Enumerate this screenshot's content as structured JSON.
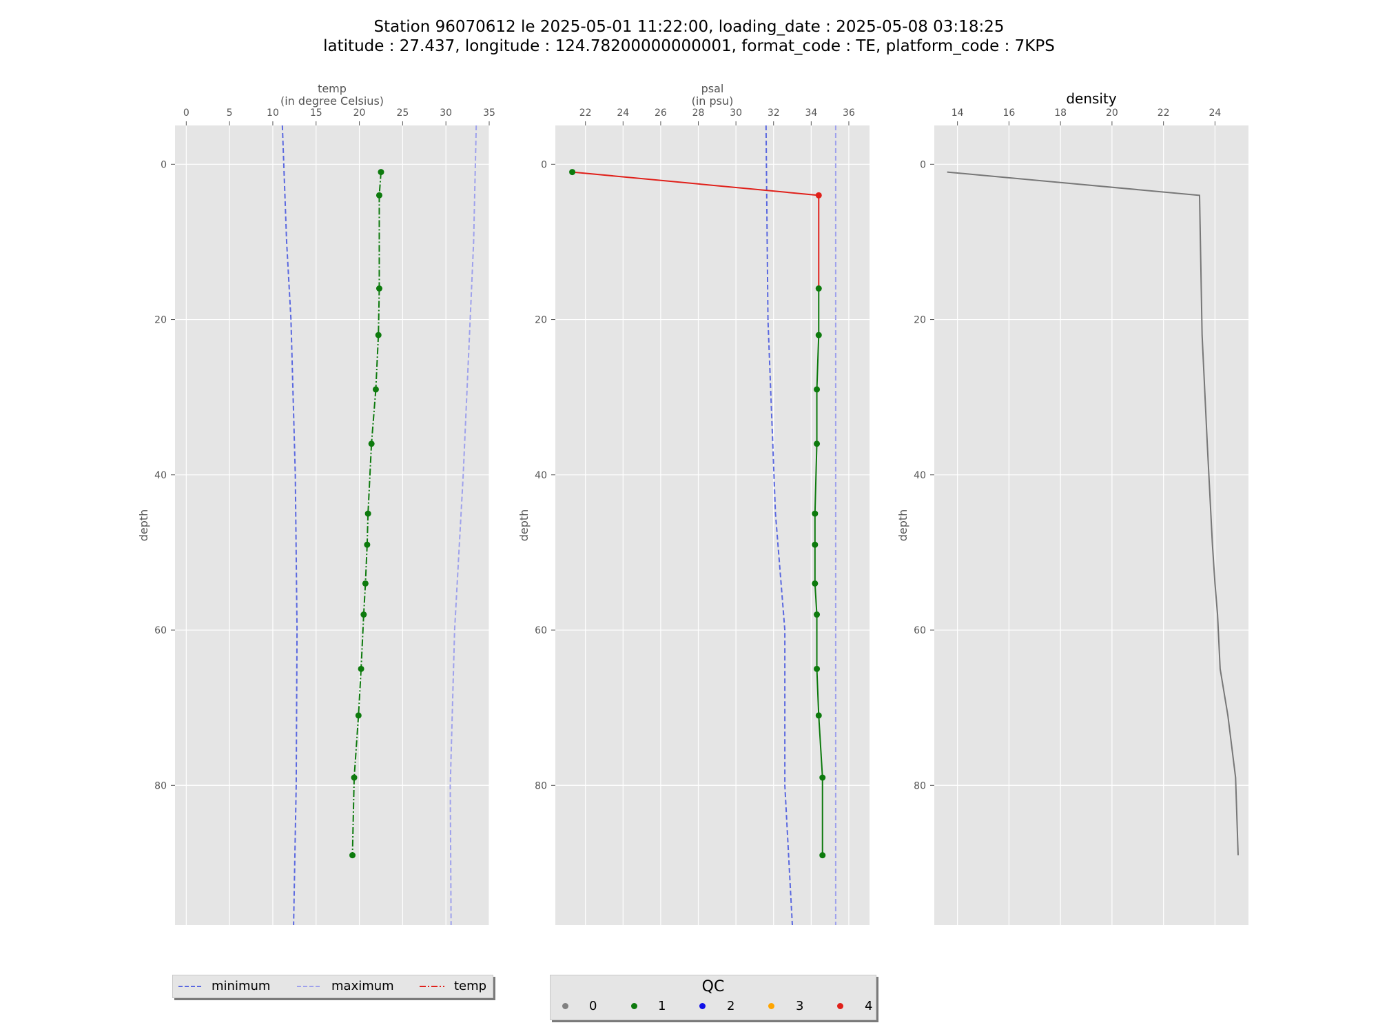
{
  "title": {
    "line1": "Station 96070612 le 2025-05-01 11:22:00, loading_date : 2025-05-08 03:18:25",
    "line2": "latitude : 27.437, longitude : 124.78200000000001, format_code : TE, platform_code : 7KPS"
  },
  "colors": {
    "background": "#e5e5e5",
    "grid": "#ffffff",
    "minimum": "#5a68e0",
    "maximum": "#9ea1ec",
    "good": "#0d7a0d",
    "bad": "#e0201a",
    "density": "#777777"
  },
  "legend": {
    "items": [
      {
        "label": "minimum",
        "style": "dashed",
        "color": "#5a68e0"
      },
      {
        "label": "maximum",
        "style": "dashed",
        "color": "#9ea1ec"
      },
      {
        "label": "temp",
        "style": "dashdot",
        "color": "#e0201a"
      }
    ]
  },
  "qc_legend": {
    "title": "QC",
    "items": [
      {
        "label": "0",
        "color": "#808080"
      },
      {
        "label": "1",
        "color": "#0d7a0d"
      },
      {
        "label": "2",
        "color": "#1010e8"
      },
      {
        "label": "3",
        "color": "#ffa500"
      },
      {
        "label": "4",
        "color": "#e0201a"
      }
    ]
  },
  "chart_data": [
    {
      "type": "line",
      "title": "temp\n(in degree Celsius)",
      "ylabel": "depth",
      "xlim": [
        -1.3,
        35
      ],
      "ylim": [
        -5,
        98
      ],
      "y_inverted": true,
      "xticks": [
        0,
        5,
        10,
        15,
        20,
        25,
        30,
        35
      ],
      "yticks": [
        0,
        20,
        40,
        60,
        80
      ],
      "grid": true,
      "series": [
        {
          "name": "minimum",
          "style": "dashed",
          "points": [
            [
              11.1,
              -5
            ],
            [
              11.6,
              10
            ],
            [
              12.1,
              20
            ],
            [
              12.6,
              40
            ],
            [
              12.8,
              60
            ],
            [
              12.7,
              80
            ],
            [
              12.4,
              98
            ]
          ]
        },
        {
          "name": "maximum",
          "style": "dashed",
          "points": [
            [
              33.5,
              -5
            ],
            [
              33.2,
              10
            ],
            [
              32.8,
              20
            ],
            [
              32.0,
              40
            ],
            [
              31.0,
              60
            ],
            [
              30.5,
              80
            ],
            [
              30.6,
              98
            ]
          ]
        },
        {
          "name": "temp",
          "style": "dashdot",
          "points": [
            [
              22.5,
              1
            ],
            [
              22.3,
              4
            ],
            [
              22.3,
              16
            ],
            [
              22.2,
              22
            ],
            [
              21.9,
              29
            ],
            [
              21.4,
              36
            ],
            [
              21.0,
              45
            ],
            [
              20.9,
              49
            ],
            [
              20.7,
              54
            ],
            [
              20.5,
              58
            ],
            [
              20.2,
              65
            ],
            [
              19.9,
              71
            ],
            [
              19.4,
              79
            ],
            [
              19.2,
              89
            ]
          ],
          "qc": [
            1,
            1,
            1,
            1,
            1,
            1,
            1,
            1,
            1,
            1,
            1,
            1,
            1,
            1
          ]
        }
      ]
    },
    {
      "type": "line",
      "title": "psal\n(in psu)",
      "ylabel": "depth",
      "xlim": [
        20.4,
        37.1
      ],
      "ylim": [
        -5,
        98
      ],
      "y_inverted": true,
      "xticks": [
        22,
        24,
        26,
        28,
        30,
        32,
        34,
        36
      ],
      "yticks": [
        0,
        20,
        40,
        60,
        80
      ],
      "grid": true,
      "series": [
        {
          "name": "minimum",
          "style": "dashed",
          "points": [
            [
              31.6,
              -5
            ],
            [
              31.7,
              20
            ],
            [
              32.1,
              45
            ],
            [
              32.6,
              60
            ],
            [
              32.6,
              80
            ],
            [
              33.0,
              98
            ]
          ]
        },
        {
          "name": "maximum",
          "style": "dashed",
          "points": [
            [
              35.3,
              -5
            ],
            [
              35.3,
              98
            ]
          ]
        },
        {
          "name": "psal",
          "style": "solid",
          "points": [
            [
              21.3,
              1
            ],
            [
              34.4,
              4
            ],
            [
              34.4,
              16
            ],
            [
              34.4,
              22
            ],
            [
              34.3,
              29
            ],
            [
              34.3,
              36
            ],
            [
              34.2,
              45
            ],
            [
              34.2,
              49
            ],
            [
              34.2,
              54
            ],
            [
              34.3,
              58
            ],
            [
              34.3,
              65
            ],
            [
              34.4,
              71
            ],
            [
              34.6,
              79
            ],
            [
              34.6,
              89
            ]
          ],
          "qc": [
            1,
            4,
            1,
            1,
            1,
            1,
            1,
            1,
            1,
            1,
            1,
            1,
            1,
            1
          ]
        }
      ]
    },
    {
      "type": "line",
      "title": "density",
      "ylabel": "depth",
      "xlim": [
        13.1,
        25.3
      ],
      "ylim": [
        -5,
        98
      ],
      "y_inverted": true,
      "xticks": [
        14,
        16,
        18,
        20,
        22,
        24
      ],
      "yticks": [
        0,
        20,
        40,
        60,
        80
      ],
      "grid": true,
      "series": [
        {
          "points": [
            [
              13.6,
              1
            ],
            [
              23.4,
              4
            ],
            [
              23.5,
              22
            ],
            [
              23.7,
              36
            ],
            [
              23.9,
              49
            ],
            [
              24.0,
              54
            ],
            [
              24.1,
              58
            ],
            [
              24.2,
              65
            ],
            [
              24.5,
              71
            ],
            [
              24.8,
              79
            ],
            [
              24.9,
              89
            ]
          ]
        }
      ]
    }
  ]
}
